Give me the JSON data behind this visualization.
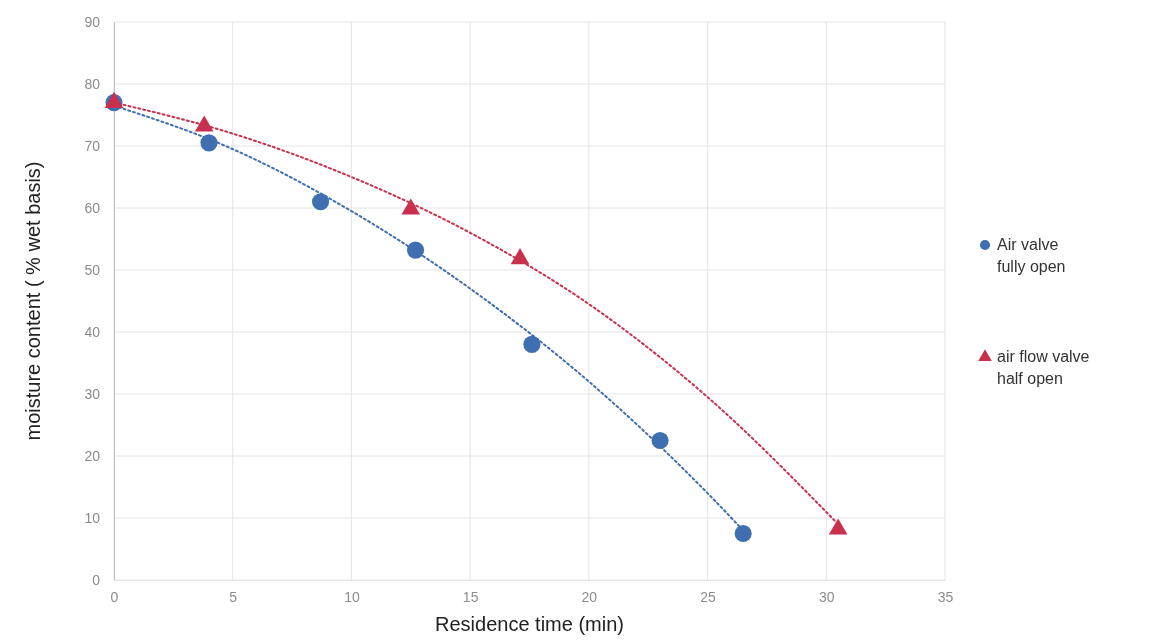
{
  "chart_data": {
    "type": "scatter",
    "xlabel": "Residence time (min)",
    "ylabel": "moisture content ( % wet basis)",
    "xlim": [
      0,
      35
    ],
    "xticks": [
      0,
      5,
      10,
      15,
      20,
      25,
      30,
      35
    ],
    "ylim": [
      0,
      90
    ],
    "yticks": [
      0,
      10,
      20,
      30,
      40,
      50,
      60,
      70,
      80,
      90
    ],
    "grid": true,
    "legend": "right",
    "series": [
      {
        "name": "Air valve fully open",
        "color": "#3f6fb0",
        "marker": "circle",
        "x": [
          0,
          4,
          8.7,
          12.7,
          17.6,
          23,
          26.5
        ],
        "values": [
          77,
          70.5,
          61,
          53.2,
          38,
          22.5,
          7.5
        ]
      },
      {
        "name": "air flow valve half open",
        "color": "#c8304e",
        "marker": "triangle",
        "x": [
          0,
          3.8,
          12.5,
          17.1,
          30.5
        ],
        "values": [
          77,
          73.2,
          59.8,
          51.8,
          8.2
        ]
      },
      {
        "type": "line",
        "line_style": "dotted",
        "color": "#3f6fb0",
        "x": [
          0,
          5,
          10,
          15,
          20,
          25,
          26.5
        ],
        "values": [
          76.5,
          69.5,
          59.5,
          47,
          32,
          14,
          8
        ]
      },
      {
        "type": "line",
        "line_style": "dotted",
        "color": "#c8304e",
        "x": [
          0,
          5,
          10,
          15,
          20,
          25,
          30.5
        ],
        "values": [
          77,
          72,
          65,
          56,
          44.5,
          29.5,
          9
        ]
      }
    ]
  }
}
